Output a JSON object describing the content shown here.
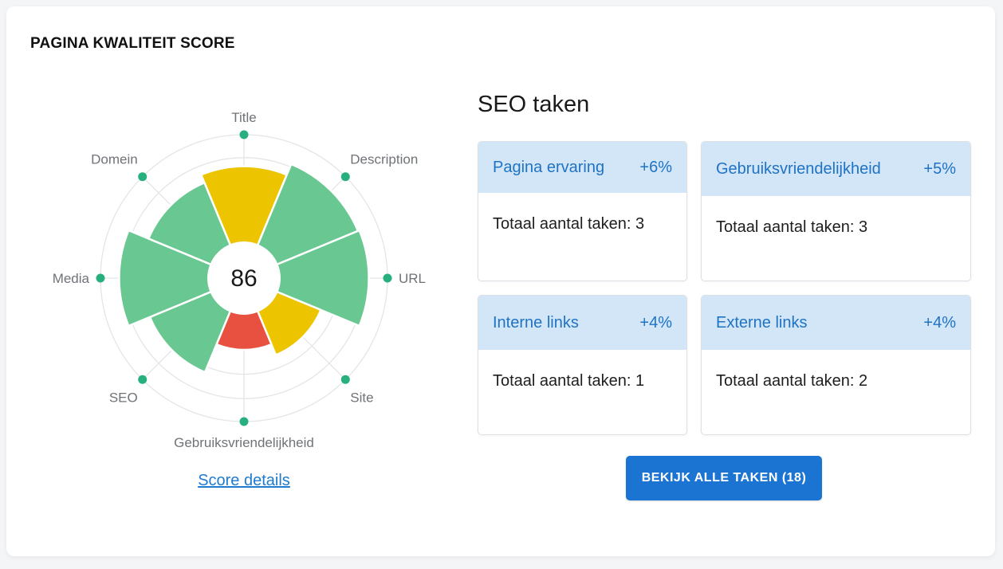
{
  "page": {
    "title": "PAGINA KWALITEIT SCORE"
  },
  "score": {
    "value": "86",
    "details_link": "Score details"
  },
  "chart_data": {
    "type": "polar-area",
    "center_label": "86",
    "categories": [
      "Title",
      "Description",
      "URL",
      "Site",
      "Gebruiksvriendelijkheid",
      "SEO",
      "Media",
      "Domein"
    ],
    "values": [
      0.78,
      0.86,
      0.87,
      0.58,
      0.5,
      0.71,
      0.87,
      0.72
    ],
    "colors": [
      "#ecc400",
      "#69c891",
      "#69c891",
      "#ecc400",
      "#e85040",
      "#69c891",
      "#69c891",
      "#69c891"
    ],
    "marker_color": "#27b07e",
    "grid": true
  },
  "seo": {
    "title": "SEO taken",
    "tasks": [
      {
        "name": "Pagina ervaring",
        "pct": "+6%",
        "body": "Totaal aantal taken: 3"
      },
      {
        "name": "Gebruiksvriendelijkheid",
        "pct": "+5%",
        "body": "Totaal aantal taken: 3"
      },
      {
        "name": "Interne links",
        "pct": "+4%",
        "body": "Totaal aantal taken: 1"
      },
      {
        "name": "Externe links",
        "pct": "+4%",
        "body": "Totaal aantal taken: 2"
      }
    ],
    "button_label": "BEKIJK ALLE TAKEN (18)"
  }
}
